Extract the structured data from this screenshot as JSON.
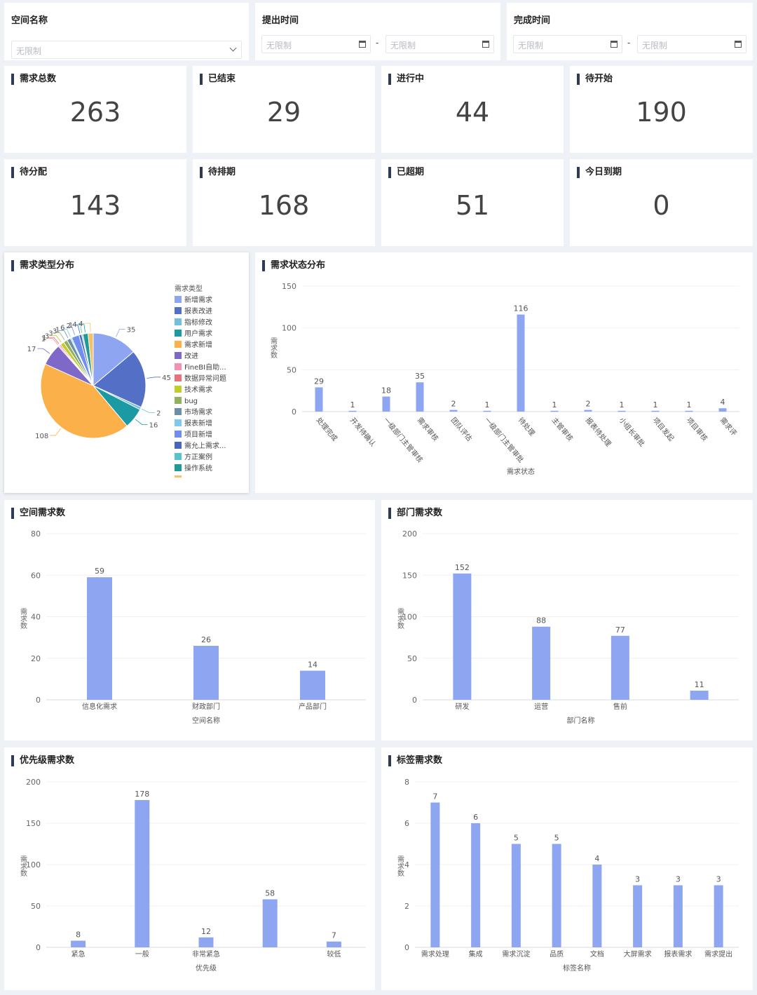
{
  "filters": {
    "space_name": {
      "label": "空间名称",
      "placeholder": "无限制"
    },
    "submit_time": {
      "label": "提出时间",
      "start_placeholder": "无限制",
      "end_placeholder": "无限制",
      "separator": "-"
    },
    "complete_time": {
      "label": "完成时间",
      "start_placeholder": "无限制",
      "end_placeholder": "无限制",
      "separator": "-"
    }
  },
  "kpis": [
    {
      "label": "需求总数",
      "value": "263"
    },
    {
      "label": "已结束",
      "value": "29"
    },
    {
      "label": "进行中",
      "value": "44"
    },
    {
      "label": "待开始",
      "value": "190"
    },
    {
      "label": "待分配",
      "value": "143"
    },
    {
      "label": "待排期",
      "value": "168"
    },
    {
      "label": "已超期",
      "value": "51"
    },
    {
      "label": "今日到期",
      "value": "0"
    }
  ],
  "colors": {
    "bar": "#8ea6f1",
    "title_bar": "#2f3a55",
    "page_bg": "#eef1f5"
  },
  "charts": {
    "type_dist": {
      "title": "需求类型分布",
      "legend_title": "需求类型"
    },
    "status_dist": {
      "title": "需求状态分布"
    },
    "space": {
      "title": "空间需求数"
    },
    "dept": {
      "title": "部门需求数"
    },
    "priority": {
      "title": "优先级需求数"
    },
    "tag": {
      "title": "标签需求数"
    }
  },
  "chart_data": [
    {
      "id": "type_dist",
      "type": "pie",
      "legend_title": "需求类型",
      "legend_position": "right",
      "slices": [
        {
          "name": "新增需求",
          "value": 35,
          "color": "#8ea6f1"
        },
        {
          "name": "报表改进",
          "value": 45,
          "color": "#5470c6"
        },
        {
          "name": "指标修改",
          "value": 2,
          "color": "#73c0de"
        },
        {
          "name": "用户需求",
          "value": 16,
          "color": "#1b9aa3"
        },
        {
          "name": "需求新增",
          "value": 108,
          "color": "#fbb04a"
        },
        {
          "name": "改进",
          "value": 17,
          "color": "#7e68c8"
        },
        {
          "name": "FineBI自助...",
          "value": 1,
          "color": "#f58fb4"
        },
        {
          "name": "数据异常问题",
          "value": 1,
          "color": "#e8727a"
        },
        {
          "name": "技术需求",
          "value": 3,
          "color": "#c4cc2c"
        },
        {
          "name": "bug",
          "value": 3,
          "color": "#91b15c"
        },
        {
          "name": "市场需求",
          "value": 3,
          "color": "#6c8fa8"
        },
        {
          "name": "报表新增",
          "value": 1,
          "color": "#80c8ee"
        },
        {
          "name": "项目新增",
          "value": 6,
          "color": "#6f8ef0"
        },
        {
          "name": "需允上需求...",
          "value": 2,
          "color": "#4a65c0"
        },
        {
          "name": "方正案例",
          "value": 1,
          "color": "#56c2c9"
        },
        {
          "name": "操作系统",
          "value": 4,
          "color": "#1f9a96"
        },
        {
          "name": "",
          "value": 4,
          "color": "#f4c06a"
        }
      ],
      "visible_legend_count": 16
    },
    {
      "id": "status_dist",
      "type": "bar",
      "xlabel": "需求状态",
      "ylabel": "需求数",
      "ylim": [
        0,
        150
      ],
      "yticks": [
        0,
        50,
        100,
        150
      ],
      "categories": [
        "处理完成",
        "开发待确认",
        "一级部门主管审核",
        "需求审核",
        "团队评估",
        "一级部门主管审批",
        "待处理",
        "主管审核",
        "报表待处理",
        "小组长审批",
        "项目发起",
        "项目审核",
        "需求评"
      ],
      "values": [
        29,
        1,
        18,
        35,
        2,
        1,
        116,
        1,
        2,
        1,
        1,
        1,
        4
      ]
    },
    {
      "id": "space",
      "type": "bar",
      "xlabel": "空间名称",
      "ylabel": "需求数",
      "ylim": [
        0,
        80
      ],
      "yticks": [
        0,
        20,
        40,
        60,
        80
      ],
      "categories": [
        "信息化需求",
        "财政部门",
        "产品部门"
      ],
      "values": [
        59,
        26,
        14
      ]
    },
    {
      "id": "dept",
      "type": "bar",
      "xlabel": "部门名称",
      "ylabel": "需求数",
      "ylim": [
        0,
        200
      ],
      "yticks": [
        0,
        50,
        100,
        150,
        200
      ],
      "categories": [
        "研发",
        "运营",
        "售前",
        ""
      ],
      "values": [
        152,
        88,
        77,
        11
      ]
    },
    {
      "id": "priority",
      "type": "bar",
      "xlabel": "优先级",
      "ylabel": "需求数",
      "ylim": [
        0,
        200
      ],
      "yticks": [
        0,
        50,
        100,
        150,
        200
      ],
      "categories": [
        "紧急",
        "一般",
        "非常紧急",
        "",
        "较低"
      ],
      "values": [
        8,
        178,
        12,
        58,
        7
      ]
    },
    {
      "id": "tag",
      "type": "bar",
      "xlabel": "标签名称",
      "ylabel": "需求数",
      "ylim": [
        0,
        8
      ],
      "yticks": [
        0,
        2,
        4,
        6,
        8
      ],
      "categories": [
        "需求处理",
        "集成",
        "需求沉淀",
        "品质",
        "文档",
        "大屏需求",
        "报表需求",
        "需求提出"
      ],
      "values": [
        7,
        6,
        5,
        5,
        4,
        3,
        3,
        3
      ]
    }
  ]
}
